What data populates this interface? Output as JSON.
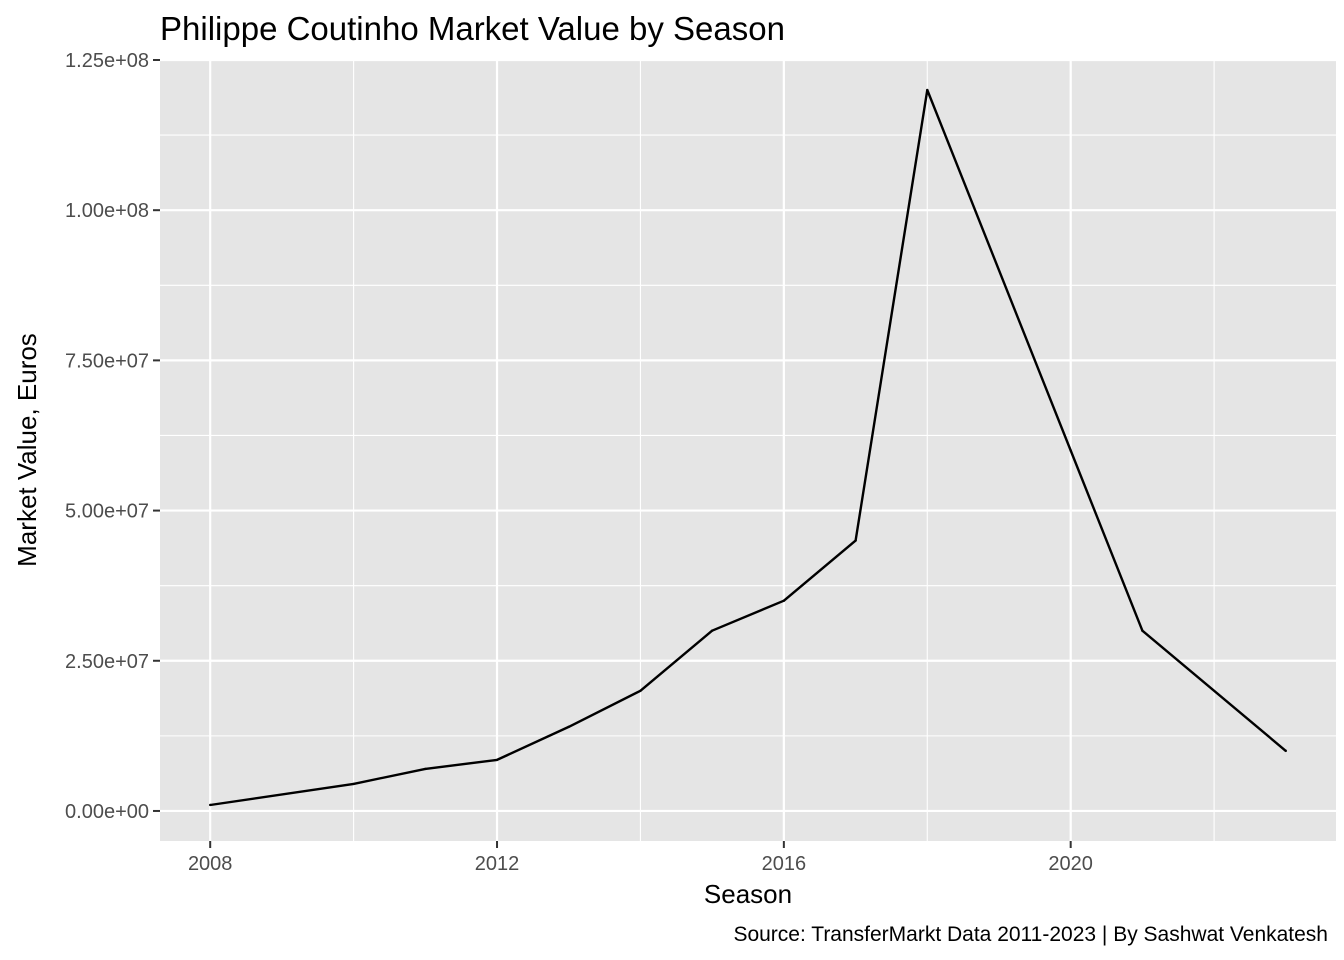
{
  "chart_data": {
    "type": "line",
    "title": "Philippe Coutinho Market Value by Season",
    "xlabel": "Season",
    "ylabel": "Market Value, Euros",
    "caption": "Source: TransferMarkt Data 2011-2023 | By Sashwat Venkatesh",
    "xlim": [
      2007.3,
      2023.7
    ],
    "ylim": [
      -5000000,
      125000000
    ],
    "x_ticks": [
      {
        "value": 2008,
        "label": "2008"
      },
      {
        "value": 2012,
        "label": "2012"
      },
      {
        "value": 2016,
        "label": "2016"
      },
      {
        "value": 2020,
        "label": "2020"
      }
    ],
    "x_minor_ticks": [
      2010,
      2014,
      2018,
      2022
    ],
    "y_ticks": [
      {
        "value": 0,
        "label": "0.00e+00"
      },
      {
        "value": 25000000,
        "label": "2.50e+07"
      },
      {
        "value": 50000000,
        "label": "5.00e+07"
      },
      {
        "value": 75000000,
        "label": "7.50e+07"
      },
      {
        "value": 100000000,
        "label": "1.00e+08"
      },
      {
        "value": 125000000,
        "label": "1.25e+08"
      }
    ],
    "y_minor_ticks": [
      12500000,
      37500000,
      62500000,
      87500000,
      112500000
    ],
    "grid": true,
    "series": [
      {
        "color": "#000000",
        "x": [
          2008,
          2010,
          2011,
          2012,
          2013,
          2014,
          2015,
          2016,
          2017,
          2018,
          2020,
          2021,
          2023
        ],
        "y": [
          1000000,
          4500000,
          7000000,
          8500000,
          14000000,
          20000000,
          30000000,
          35000000,
          45000000,
          120000000,
          60000000,
          30000000,
          10000000
        ]
      }
    ],
    "colors": {
      "panel": "#e5e5e5",
      "grid": "#ffffff",
      "tick": "#333333"
    }
  }
}
